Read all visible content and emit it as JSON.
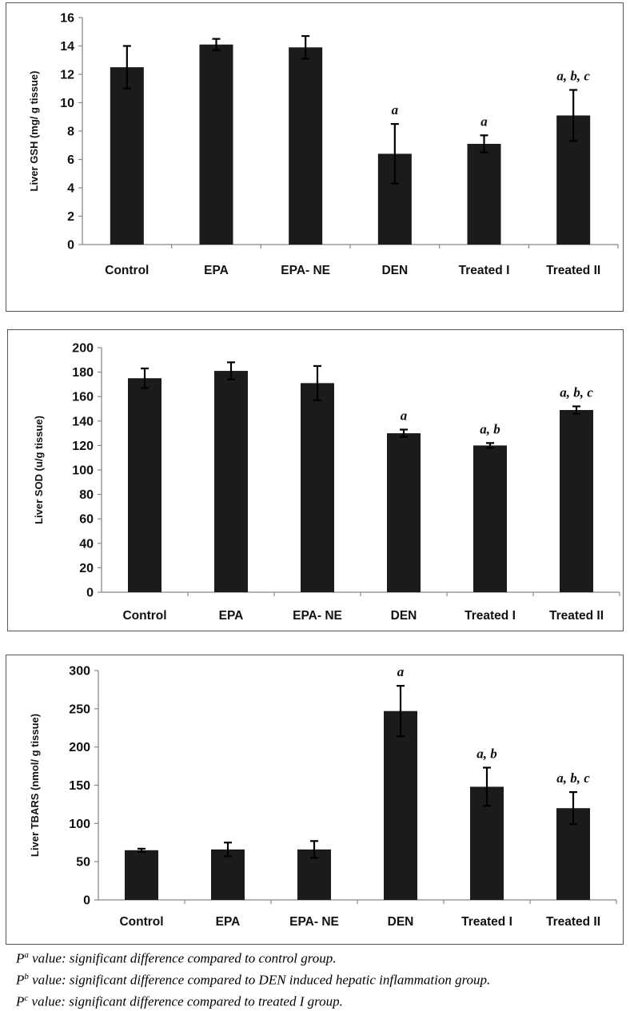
{
  "chart_data": [
    {
      "type": "bar",
      "title": "",
      "xlabel": "",
      "ylabel": "Liver GSH (mg/ g tissue)",
      "categories": [
        "Control",
        "EPA",
        "EPA- NE",
        "DEN",
        "Treated I",
        "Treated II"
      ],
      "values": [
        12.5,
        14.1,
        13.9,
        6.4,
        7.1,
        9.1
      ],
      "errors": [
        1.5,
        0.4,
        0.8,
        2.1,
        0.6,
        1.8
      ],
      "annotations": [
        "",
        "",
        "",
        "a",
        "a",
        "a, b, c"
      ],
      "ylim": [
        0,
        16
      ],
      "yticks": [
        "0",
        "2",
        "4",
        "6",
        "8",
        "10",
        "12",
        "14",
        "16"
      ],
      "grid": false,
      "legend": "none"
    },
    {
      "type": "bar",
      "title": "",
      "xlabel": "",
      "ylabel": "Liver SOD (u/g tissue)",
      "categories": [
        "Control",
        "EPA",
        "EPA- NE",
        "DEN",
        "Treated I",
        "Treated II"
      ],
      "values": [
        175,
        181,
        171,
        130,
        120,
        149
      ],
      "errors": [
        8,
        7,
        14,
        3,
        2,
        3
      ],
      "annotations": [
        "",
        "",
        "",
        "a",
        "a, b",
        "a, b, c"
      ],
      "ylim": [
        0,
        200
      ],
      "yticks": [
        "0",
        "20",
        "40",
        "60",
        "80",
        "100",
        "120",
        "140",
        "160",
        "180",
        "200"
      ],
      "grid": false,
      "legend": "none"
    },
    {
      "type": "bar",
      "title": "",
      "xlabel": "",
      "ylabel": "Liver TBARS (nmol/ g tissue)",
      "categories": [
        "Control",
        "EPA",
        "EPA- NE",
        "DEN",
        "Treated I",
        "Treated II"
      ],
      "values": [
        65,
        66,
        66,
        247,
        148,
        120
      ],
      "errors": [
        2,
        9,
        11,
        33,
        25,
        21
      ],
      "annotations": [
        "",
        "",
        "",
        "a",
        "a, b",
        "a, b, c"
      ],
      "ylim": [
        0,
        300
      ],
      "yticks": [
        "0",
        "50",
        "100",
        "150",
        "200",
        "250",
        "300"
      ],
      "grid": false,
      "legend": "none"
    }
  ],
  "footnotes": [
    {
      "sym": "P",
      "sup": "a",
      "text": " value: significant difference compared to control group."
    },
    {
      "sym": "P",
      "sup": "b",
      "text": " value: significant difference compared to DEN induced hepatic inflammation group."
    },
    {
      "sym": "P",
      "sup": "c",
      "text": " value: significant difference compared to treated I group."
    }
  ],
  "colors": {
    "bar": "#1b1b1b",
    "axis": "#888888",
    "frame": "#555555"
  }
}
